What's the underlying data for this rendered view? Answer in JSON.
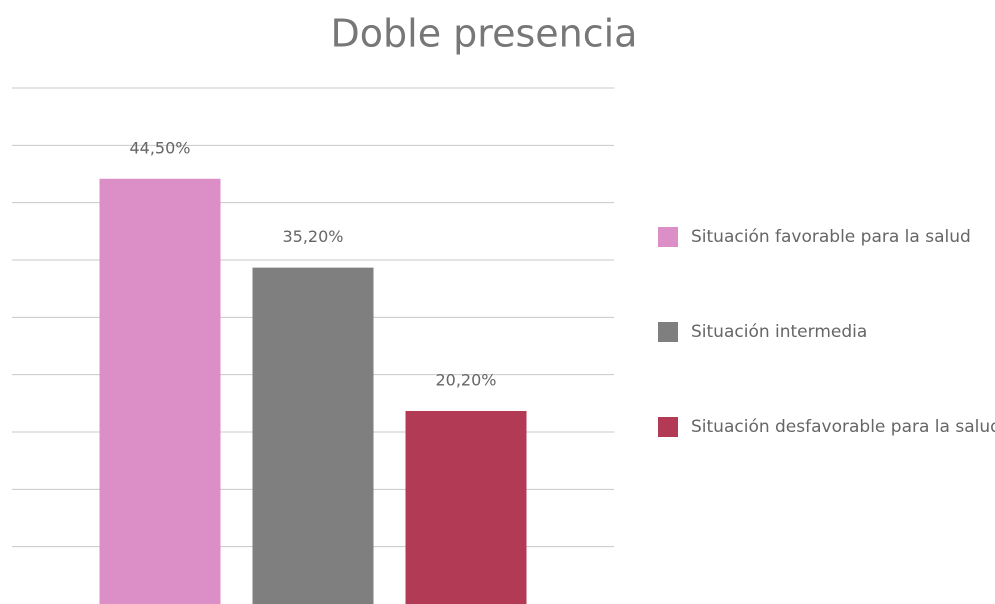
{
  "chart_data": {
    "type": "bar",
    "title": "Doble presencia",
    "categories": [
      null
    ],
    "series": [
      {
        "name": "Situación favorable para la salud",
        "color": "#dc8fc7",
        "values": [
          44.5
        ],
        "value_labels": [
          "44,50%"
        ]
      },
      {
        "name": "Situación intermedia",
        "color": "#7f7f7f",
        "values": [
          35.2
        ],
        "value_labels": [
          "35,20%"
        ]
      },
      {
        "name": "Situación desfavorable para la salud",
        "color": "#b33a55",
        "values": [
          20.2
        ],
        "value_labels": [
          "20,20%"
        ]
      }
    ],
    "ylim": [
      0,
      54
    ],
    "yticks": [
      6,
      12,
      18,
      24,
      30,
      36,
      42,
      48,
      54
    ],
    "grid": true,
    "legend": "right"
  }
}
